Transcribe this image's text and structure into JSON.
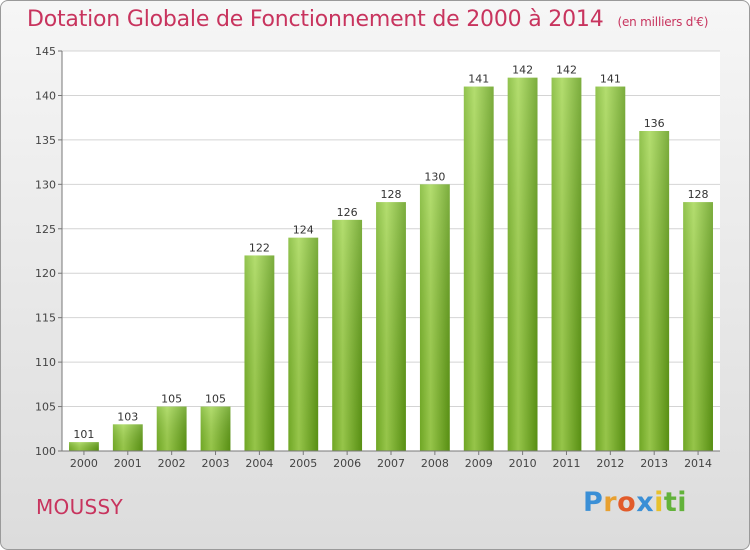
{
  "header": {
    "title": "Dotation Globale de Fonctionnement de 2000 à 2014",
    "subtitle": "(en milliers d'€)"
  },
  "footer": {
    "place": "MOUSSY",
    "logo": [
      "P",
      "r",
      "o",
      "x",
      "i",
      "ti"
    ]
  },
  "colors": {
    "title": "#c8345e",
    "bar_light": "#9fd14a",
    "bar_dark": "#5f9b14",
    "grid": "#cccccc"
  },
  "chart_data": {
    "type": "bar",
    "title": "Dotation Globale de Fonctionnement de 2000 à 2014",
    "subtitle": "(en milliers d'€)",
    "categories": [
      "2000",
      "2001",
      "2002",
      "2003",
      "2004",
      "2005",
      "2006",
      "2007",
      "2008",
      "2009",
      "2010",
      "2011",
      "2012",
      "2013",
      "2014"
    ],
    "values": [
      101,
      103,
      105,
      105,
      122,
      124,
      126,
      128,
      130,
      141,
      142,
      142,
      141,
      136,
      128
    ],
    "yticks": [
      100,
      105,
      110,
      115,
      120,
      125,
      130,
      135,
      140,
      145
    ],
    "ylim": [
      100,
      145
    ],
    "grid": true,
    "legend": "none",
    "xlabel": "",
    "ylabel": ""
  }
}
